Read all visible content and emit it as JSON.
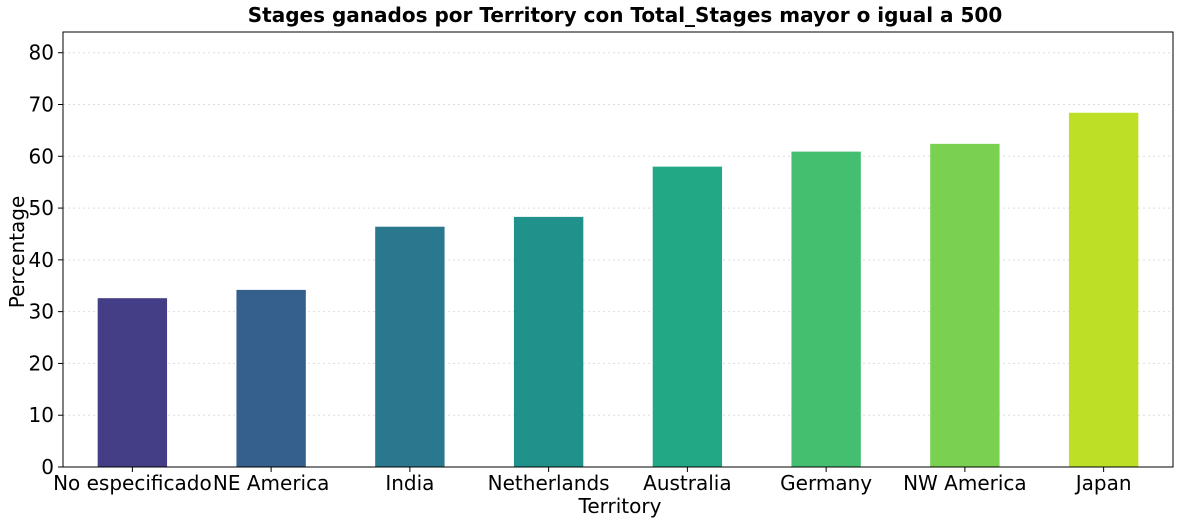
{
  "chart_data": {
    "type": "bar",
    "title": "Stages ganados por Territory con Total_Stages mayor o igual a 500",
    "xlabel": "Territory",
    "ylabel": "Percentage",
    "categories": [
      "No especificado",
      "NE America",
      "India",
      "Netherlands",
      "Australia",
      "Germany",
      "NW America",
      "Japan"
    ],
    "values": [
      32.6,
      34.2,
      46.4,
      48.3,
      58.0,
      60.9,
      62.4,
      68.4
    ],
    "colors": [
      "#433e85",
      "#355f8d",
      "#2a788e",
      "#21918c",
      "#22a884",
      "#44bf70",
      "#7ad151",
      "#bddf26"
    ],
    "ylim": [
      0,
      84
    ],
    "yticks": [
      0,
      10,
      20,
      30,
      40,
      50,
      60,
      70,
      80
    ],
    "grid": true
  }
}
